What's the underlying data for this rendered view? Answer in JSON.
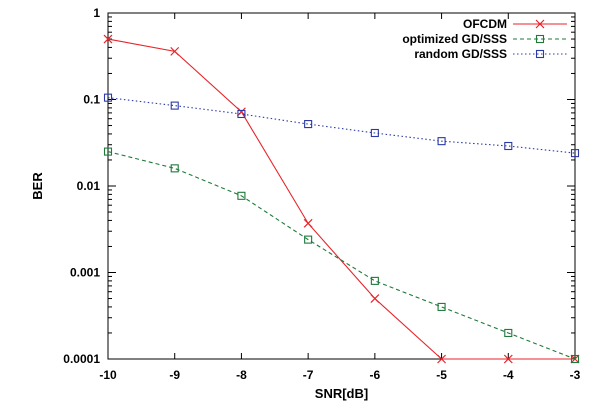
{
  "chart_data": {
    "type": "line",
    "title": "",
    "xlabel": "SNR[dB]",
    "ylabel": "BER",
    "xlim": [
      -10,
      -3
    ],
    "ylim": [
      0.0001,
      1
    ],
    "yscale": "log",
    "grid": false,
    "legend_position": "top-right",
    "x": [
      -10,
      -9,
      -8,
      -7,
      -6,
      -5,
      -4,
      -3
    ],
    "x_tick_labels": [
      "-10",
      "-9",
      "-8",
      "-7",
      "-6",
      "-5",
      "-4",
      "-3"
    ],
    "y_ticks": [
      0.0001,
      0.001,
      0.01,
      0.1,
      1
    ],
    "y_tick_labels": [
      "0.0001",
      "0.001",
      "0.01",
      "0.1",
      "1"
    ],
    "series": [
      {
        "name": "OFCDM",
        "color": "#e8232a",
        "marker": "x",
        "dash": "solid",
        "values": [
          0.5,
          0.36,
          0.072,
          0.0037,
          0.0005,
          0.0001,
          0.0001,
          0.0001
        ]
      },
      {
        "name": "optimized GD/SSS",
        "color": "#1e7a3a",
        "marker": "square",
        "dash": "dashed",
        "values": [
          0.025,
          0.016,
          0.0077,
          0.0024,
          0.0008,
          0.0004,
          0.0002,
          0.0001
        ]
      },
      {
        "name": "random GD/SSS",
        "color": "#2a3aa8",
        "marker": "square",
        "dash": "dotted",
        "values": [
          0.105,
          0.085,
          0.068,
          0.052,
          0.041,
          0.033,
          0.029,
          0.024
        ]
      }
    ]
  }
}
